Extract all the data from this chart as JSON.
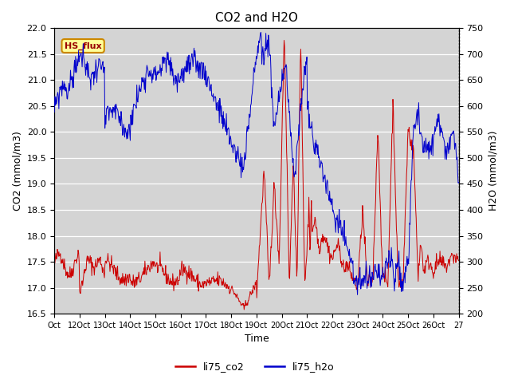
{
  "title": "CO2 and H2O",
  "xlabel": "Time",
  "ylabel_left": "CO2 (mmol/m3)",
  "ylabel_right": "H2O (mmol/m3)",
  "ylim_left": [
    16.5,
    22.0
  ],
  "ylim_right": [
    200,
    750
  ],
  "yticks_left": [
    16.5,
    17.0,
    17.5,
    18.0,
    18.5,
    19.0,
    19.5,
    20.0,
    20.5,
    21.0,
    21.5,
    22.0
  ],
  "yticks_right": [
    200,
    250,
    300,
    350,
    400,
    450,
    500,
    550,
    600,
    650,
    700,
    750
  ],
  "xtick_labels": [
    "Oct",
    "12Oct",
    "13Oct",
    "14Oct",
    "15Oct",
    "16Oct",
    "17Oct",
    "18Oct",
    "19Oct",
    "20Oct",
    "21Oct",
    "22Oct",
    "23Oct",
    "24Oct",
    "25Oct",
    "26Oct",
    "27"
  ],
  "co2_color": "#cc0000",
  "h2o_color": "#0000cc",
  "plot_bg_color": "#d4d4d4",
  "legend_label_co2": "li75_co2",
  "legend_label_h2o": "li75_h2o",
  "annotation_text": "HS_flux",
  "annotation_bg": "#ffff99",
  "annotation_border": "#cc8800",
  "figsize": [
    6.4,
    4.8
  ],
  "dpi": 100
}
